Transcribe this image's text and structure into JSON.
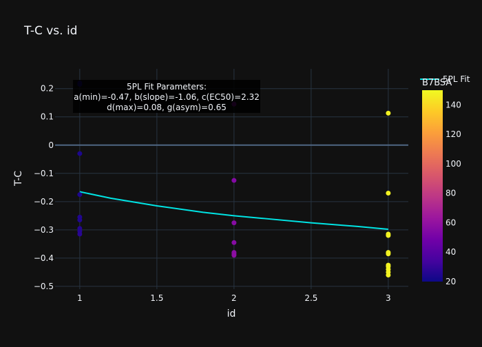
{
  "chart_data": {
    "type": "scatter",
    "title": "T-C vs. id",
    "xlabel": "id",
    "ylabel": "T-C",
    "xlim": [
      0.84,
      3.13
    ],
    "ylim": [
      -0.51,
      0.27
    ],
    "x_ticks": [
      1,
      1.5,
      2,
      2.5,
      3
    ],
    "x_tick_labels": [
      "1",
      "1.5",
      "2",
      "2.5",
      "3"
    ],
    "y_ticks": [
      0.2,
      0.1,
      0,
      -0.1,
      -0.2,
      -0.3,
      -0.4,
      -0.5
    ],
    "y_tick_labels": [
      "0.2",
      "0.1",
      "0",
      "−0.1",
      "−0.2",
      "−0.3",
      "−0.4",
      "−0.5"
    ],
    "grid": true,
    "points": [
      {
        "x": 1,
        "y": 0.22,
        "c": 22
      },
      {
        "x": 1,
        "y": 0.215,
        "c": 22
      },
      {
        "x": 1,
        "y": -0.03,
        "c": 24
      },
      {
        "x": 1,
        "y": -0.175,
        "c": 24
      },
      {
        "x": 1,
        "y": -0.255,
        "c": 25
      },
      {
        "x": 1,
        "y": -0.265,
        "c": 25
      },
      {
        "x": 1,
        "y": -0.295,
        "c": 26
      },
      {
        "x": 1,
        "y": -0.305,
        "c": 26
      },
      {
        "x": 1,
        "y": -0.315,
        "c": 27
      },
      {
        "x": 2,
        "y": 0.145,
        "c": 55
      },
      {
        "x": 2,
        "y": -0.125,
        "c": 55
      },
      {
        "x": 2,
        "y": -0.275,
        "c": 56
      },
      {
        "x": 2,
        "y": -0.345,
        "c": 56
      },
      {
        "x": 2,
        "y": -0.38,
        "c": 57
      },
      {
        "x": 2,
        "y": -0.385,
        "c": 57
      },
      {
        "x": 2,
        "y": -0.39,
        "c": 58
      },
      {
        "x": 3,
        "y": 0.113,
        "c": 148
      },
      {
        "x": 3,
        "y": -0.17,
        "c": 148
      },
      {
        "x": 3,
        "y": -0.315,
        "c": 148
      },
      {
        "x": 3,
        "y": -0.32,
        "c": 148
      },
      {
        "x": 3,
        "y": -0.38,
        "c": 148
      },
      {
        "x": 3,
        "y": -0.385,
        "c": 148
      },
      {
        "x": 3,
        "y": -0.425,
        "c": 148
      },
      {
        "x": 3,
        "y": -0.43,
        "c": 148
      },
      {
        "x": 3,
        "y": -0.44,
        "c": 148
      },
      {
        "x": 3,
        "y": -0.45,
        "c": 148
      },
      {
        "x": 3,
        "y": -0.46,
        "c": 148
      }
    ],
    "fit_series": {
      "name": "5PL Fit",
      "color": "#00e5e5",
      "x": [
        1,
        1.2,
        1.5,
        1.8,
        2,
        2.2,
        2.5,
        2.8,
        3
      ],
      "y": [
        -0.165,
        -0.188,
        -0.215,
        -0.238,
        -0.25,
        -0.26,
        -0.275,
        -0.288,
        -0.298
      ]
    },
    "annotation": {
      "lines": [
        "5PL Fit Parameters:",
        "a(min)=-0.47, b(slope)=-1.06, c(EC50)=2.32",
        "d(max)=0.08, g(asym)=0.65"
      ]
    },
    "colorbar": {
      "title": "B7BSA",
      "range": [
        20,
        150
      ],
      "ticks": [
        20,
        40,
        60,
        80,
        100,
        120,
        140
      ],
      "tick_labels": [
        "20",
        "40",
        "60",
        "80",
        "100",
        "120",
        "140"
      ],
      "colorscale": [
        "#0d0887",
        "#46039f",
        "#7201a8",
        "#9c179e",
        "#bd3786",
        "#d8576b",
        "#ed7953",
        "#fb9f3a",
        "#fdca26",
        "#f0f921"
      ]
    },
    "legend": {
      "placement": "top-right"
    }
  }
}
